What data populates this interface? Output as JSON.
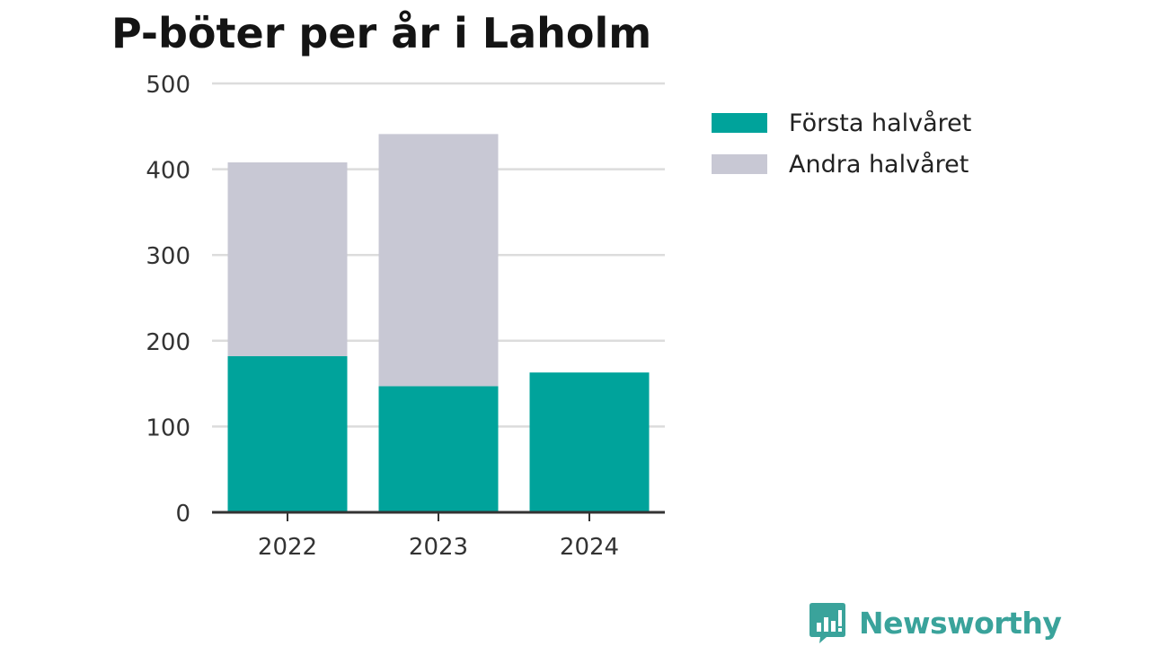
{
  "chart_data": {
    "type": "bar",
    "stacked": true,
    "title": "P-böter per år i Laholm",
    "xlabel": "",
    "ylabel": "",
    "categories": [
      "2022",
      "2023",
      "2024"
    ],
    "series": [
      {
        "name": "Första halvåret",
        "color": "#00a39b",
        "values": [
          182,
          147,
          163
        ]
      },
      {
        "name": "Andra halvåret",
        "color": "#c8c8d4",
        "values": [
          226,
          294,
          null
        ]
      }
    ],
    "ylim": [
      0,
      500
    ],
    "yticks": [
      0,
      100,
      200,
      300,
      400,
      500
    ],
    "grid": true,
    "legend": "right"
  },
  "branding": {
    "logo_text": "Newsworthy",
    "logo_icon": "bar-chart-speech-bubble-icon",
    "color": "#3aa39b"
  },
  "colors": {
    "gridline": "#dcdcdc",
    "axis": "#333333",
    "title": "#141414"
  }
}
